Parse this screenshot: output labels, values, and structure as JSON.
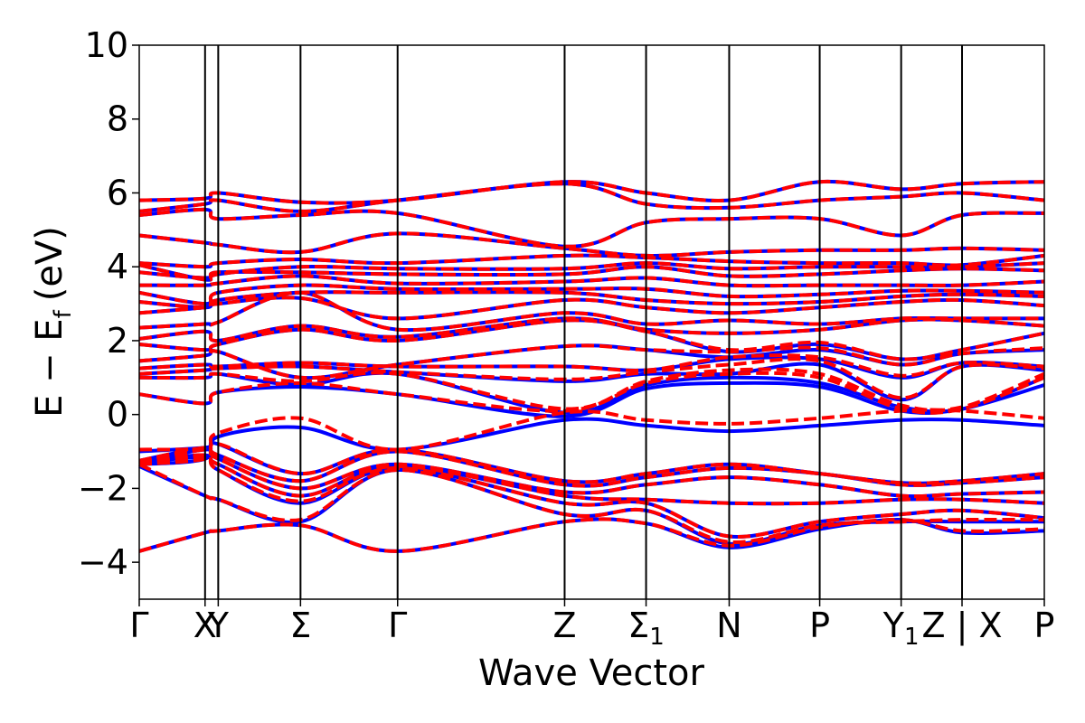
{
  "chart_data": {
    "type": "line",
    "title": "",
    "xlabel": "Wave Vector",
    "ylabel": {
      "main": "E − E",
      "sub": "f",
      "unit": "(eV)"
    },
    "ylim": [
      -5,
      10
    ],
    "yticks": [
      -4,
      -2,
      0,
      2,
      4,
      6,
      8,
      10
    ],
    "ytick_labels": [
      "−4",
      "−2",
      "0",
      "2",
      "4",
      "6",
      "8",
      "10"
    ],
    "xlim": [
      0,
      11
    ],
    "kpoints": [
      {
        "label": "Γ",
        "sub": "",
        "x": 0.0
      },
      {
        "label": "X",
        "sub": "",
        "x": 0.8
      },
      {
        "label": "Y",
        "sub": "",
        "x": 0.96
      },
      {
        "label": "Σ",
        "sub": "",
        "x": 1.96
      },
      {
        "label": "Γ",
        "sub": "",
        "x": 3.14
      },
      {
        "label": "Z",
        "sub": "",
        "x": 5.17
      },
      {
        "label": "Σ",
        "sub": "1",
        "x": 6.16
      },
      {
        "label": "N",
        "sub": "",
        "x": 7.17
      },
      {
        "label": "P",
        "sub": "",
        "x": 8.27
      },
      {
        "label": "Y",
        "sub": "1",
        "x": 9.26
      },
      {
        "label": "Z | X",
        "sub": "",
        "x": 10.0
      },
      {
        "label": "P",
        "sub": "",
        "x": 11.0
      }
    ],
    "grid": false,
    "legend": "none",
    "colors": {
      "series_a": "#0000ff",
      "series_b": "#ff0000"
    },
    "series": [
      {
        "style": "solid",
        "bands": [
          [
            -3.7,
            -3.2,
            -3.15,
            -3.0,
            -3.7,
            -2.9,
            -2.95,
            -3.6,
            -3.1,
            -2.85,
            -3.2,
            -3.15
          ],
          [
            -1.4,
            -2.2,
            -2.3,
            -2.9,
            -1.5,
            -2.7,
            -2.6,
            -3.5,
            -3.0,
            -2.9,
            -2.9,
            -2.9
          ],
          [
            -1.3,
            -1.1,
            -1.5,
            -2.4,
            -1.45,
            -2.4,
            -2.4,
            -3.3,
            -2.9,
            -2.7,
            -2.6,
            -2.8
          ],
          [
            -1.3,
            -1.15,
            -1.35,
            -2.2,
            -1.4,
            -2.2,
            -2.3,
            -2.4,
            -2.4,
            -2.3,
            -2.3,
            -2.4
          ],
          [
            -1.3,
            -0.95,
            -1.2,
            -2.0,
            -1.35,
            -2.1,
            -1.9,
            -1.7,
            -1.9,
            -2.2,
            -2.15,
            -2.1
          ],
          [
            -1.25,
            -0.9,
            -1.1,
            -1.8,
            -1.0,
            -1.9,
            -1.7,
            -1.45,
            -1.6,
            -1.9,
            -1.85,
            -1.7
          ],
          [
            -1.0,
            -0.9,
            -0.8,
            -1.6,
            -0.95,
            -1.8,
            -1.6,
            -1.35,
            -1.6,
            -1.85,
            -1.8,
            -1.6
          ],
          [
            -1.35,
            -1.2,
            -0.6,
            -0.35,
            -0.95,
            -0.15,
            -0.3,
            -0.45,
            -0.3,
            -0.15,
            -0.15,
            -0.3
          ],
          [
            0.55,
            0.3,
            0.6,
            0.75,
            0.55,
            -0.05,
            0.7,
            0.85,
            0.75,
            0.1,
            0.15,
            0.8
          ],
          [
            1.0,
            1.0,
            1.1,
            0.8,
            1.1,
            0.05,
            0.8,
            1.0,
            0.85,
            0.2,
            0.15,
            1.0
          ],
          [
            1.1,
            1.2,
            1.25,
            1.3,
            1.15,
            0.9,
            1.1,
            1.1,
            1.35,
            0.4,
            1.3,
            1.2
          ],
          [
            1.25,
            1.35,
            1.3,
            1.4,
            1.3,
            1.3,
            1.2,
            1.5,
            1.5,
            1.0,
            1.4,
            1.3
          ],
          [
            1.45,
            1.6,
            1.7,
            1.0,
            1.35,
            1.85,
            1.75,
            1.55,
            1.75,
            1.35,
            1.65,
            1.75
          ],
          [
            1.9,
            1.75,
            1.9,
            2.3,
            2.0,
            2.55,
            2.25,
            1.7,
            1.9,
            1.5,
            1.75,
            2.2
          ],
          [
            2.05,
            2.25,
            2.0,
            2.4,
            2.1,
            2.6,
            2.3,
            2.2,
            2.3,
            2.55,
            2.55,
            2.4
          ],
          [
            2.35,
            2.45,
            2.5,
            3.3,
            2.3,
            2.75,
            2.45,
            2.55,
            2.45,
            2.6,
            2.6,
            2.6
          ],
          [
            2.75,
            2.9,
            3.0,
            3.15,
            2.6,
            3.1,
            2.9,
            2.75,
            2.9,
            3.05,
            3.1,
            2.95
          ],
          [
            3.05,
            2.9,
            3.1,
            3.3,
            3.3,
            3.3,
            3.1,
            3.0,
            3.05,
            3.2,
            3.25,
            3.2
          ],
          [
            3.3,
            3.0,
            3.3,
            3.5,
            3.4,
            3.4,
            3.4,
            3.2,
            3.25,
            3.35,
            3.35,
            3.3
          ],
          [
            3.5,
            3.5,
            3.55,
            3.75,
            3.55,
            3.6,
            3.7,
            3.5,
            3.5,
            3.5,
            3.5,
            3.6
          ],
          [
            3.85,
            3.7,
            3.85,
            3.85,
            3.8,
            3.8,
            4.0,
            3.75,
            3.8,
            3.9,
            3.95,
            3.9
          ],
          [
            4.05,
            3.65,
            3.8,
            4.0,
            3.95,
            3.95,
            4.1,
            3.95,
            4.0,
            4.0,
            4.0,
            4.1
          ],
          [
            4.1,
            4.0,
            4.1,
            4.2,
            4.1,
            4.3,
            4.25,
            4.15,
            4.1,
            4.1,
            4.05,
            4.3
          ],
          [
            4.85,
            4.65,
            4.6,
            4.4,
            4.9,
            4.5,
            4.3,
            4.4,
            4.45,
            4.45,
            4.5,
            4.45
          ],
          [
            5.4,
            5.55,
            5.3,
            5.4,
            5.45,
            4.55,
            5.2,
            5.3,
            5.3,
            4.85,
            5.4,
            5.45
          ],
          [
            5.5,
            5.7,
            5.8,
            5.5,
            5.8,
            6.25,
            5.7,
            5.6,
            5.8,
            5.9,
            6.0,
            5.8
          ],
          [
            5.8,
            5.85,
            6.0,
            5.75,
            5.8,
            6.3,
            6.0,
            5.8,
            6.3,
            6.1,
            6.25,
            6.3
          ]
        ]
      },
      {
        "style": "dashed",
        "bands": [
          [
            -3.7,
            -3.2,
            -3.15,
            -3.0,
            -3.7,
            -2.9,
            -2.95,
            -3.55,
            -3.05,
            -2.85,
            -3.15,
            -3.1
          ],
          [
            -1.35,
            -2.2,
            -2.3,
            -2.85,
            -1.5,
            -2.7,
            -2.6,
            -3.45,
            -3.0,
            -2.9,
            -2.85,
            -2.85
          ],
          [
            -1.3,
            -1.1,
            -1.5,
            -2.35,
            -1.45,
            -2.4,
            -2.4,
            -3.3,
            -2.9,
            -2.7,
            -2.6,
            -2.8
          ],
          [
            -1.3,
            -1.15,
            -1.35,
            -2.2,
            -1.4,
            -2.2,
            -2.3,
            -2.4,
            -2.4,
            -2.3,
            -2.3,
            -2.4
          ],
          [
            -1.3,
            -0.95,
            -1.2,
            -2.0,
            -1.35,
            -2.1,
            -1.9,
            -1.7,
            -1.9,
            -2.2,
            -2.15,
            -2.1
          ],
          [
            -1.25,
            -0.9,
            -1.1,
            -1.8,
            -1.0,
            -1.9,
            -1.7,
            -1.45,
            -1.6,
            -1.9,
            -1.85,
            -1.7
          ],
          [
            -0.95,
            -0.9,
            -0.5,
            -0.1,
            -0.95,
            0.05,
            -0.15,
            -0.25,
            -0.1,
            0.1,
            0.1,
            -0.1
          ],
          [
            -1.35,
            -1.2,
            -0.8,
            -1.6,
            -0.95,
            -1.8,
            -1.6,
            -1.35,
            -1.6,
            -1.85,
            -1.8,
            -1.6
          ],
          [
            0.55,
            0.3,
            0.6,
            0.85,
            0.55,
            0.1,
            0.85,
            1.1,
            1.0,
            0.15,
            0.15,
            1.0
          ],
          [
            1.0,
            1.0,
            1.1,
            0.9,
            1.1,
            0.15,
            0.9,
            1.2,
            1.1,
            0.25,
            0.2,
            1.1
          ],
          [
            1.1,
            1.2,
            1.25,
            1.3,
            1.15,
            0.95,
            1.15,
            1.35,
            1.45,
            0.45,
            1.3,
            1.25
          ],
          [
            1.25,
            1.35,
            1.3,
            1.4,
            1.3,
            1.3,
            1.2,
            1.55,
            1.55,
            1.05,
            1.4,
            1.3
          ],
          [
            1.45,
            1.6,
            1.7,
            1.0,
            1.35,
            1.85,
            1.75,
            1.7,
            1.8,
            1.35,
            1.65,
            1.8
          ],
          [
            1.9,
            1.75,
            1.9,
            2.3,
            2.0,
            2.55,
            2.25,
            1.75,
            1.95,
            1.5,
            1.75,
            2.2
          ],
          [
            2.05,
            2.25,
            2.0,
            2.4,
            2.1,
            2.6,
            2.3,
            2.2,
            2.3,
            2.55,
            2.55,
            2.4
          ],
          [
            2.35,
            2.45,
            2.5,
            3.3,
            2.3,
            2.75,
            2.45,
            2.55,
            2.45,
            2.6,
            2.6,
            2.6
          ],
          [
            2.75,
            2.9,
            3.0,
            3.15,
            2.6,
            3.1,
            2.9,
            2.75,
            2.9,
            3.05,
            3.1,
            2.95
          ],
          [
            3.05,
            2.9,
            3.1,
            3.3,
            3.3,
            3.3,
            3.1,
            3.0,
            3.05,
            3.2,
            3.25,
            3.2
          ],
          [
            3.3,
            3.0,
            3.3,
            3.5,
            3.4,
            3.4,
            3.4,
            3.2,
            3.25,
            3.35,
            3.35,
            3.3
          ],
          [
            3.5,
            3.5,
            3.55,
            3.75,
            3.55,
            3.6,
            3.7,
            3.5,
            3.5,
            3.5,
            3.5,
            3.6
          ],
          [
            3.85,
            3.7,
            3.85,
            3.85,
            3.8,
            3.8,
            4.0,
            3.75,
            3.8,
            3.9,
            3.95,
            3.9
          ],
          [
            4.05,
            3.65,
            3.8,
            4.0,
            3.95,
            3.95,
            4.1,
            3.95,
            4.0,
            4.0,
            4.0,
            4.1
          ],
          [
            4.1,
            4.0,
            4.1,
            4.2,
            4.1,
            4.3,
            4.25,
            4.15,
            4.1,
            4.1,
            4.05,
            4.3
          ],
          [
            4.85,
            4.65,
            4.6,
            4.4,
            4.9,
            4.5,
            4.3,
            4.4,
            4.45,
            4.45,
            4.5,
            4.45
          ],
          [
            5.4,
            5.55,
            5.3,
            5.4,
            5.45,
            4.55,
            5.2,
            5.3,
            5.3,
            4.85,
            5.4,
            5.45
          ],
          [
            5.5,
            5.7,
            5.8,
            5.5,
            5.8,
            6.25,
            5.7,
            5.6,
            5.8,
            5.9,
            6.0,
            5.8
          ],
          [
            5.8,
            5.85,
            6.0,
            5.75,
            5.8,
            6.3,
            6.0,
            5.8,
            6.3,
            6.1,
            6.25,
            6.3
          ]
        ]
      }
    ]
  }
}
